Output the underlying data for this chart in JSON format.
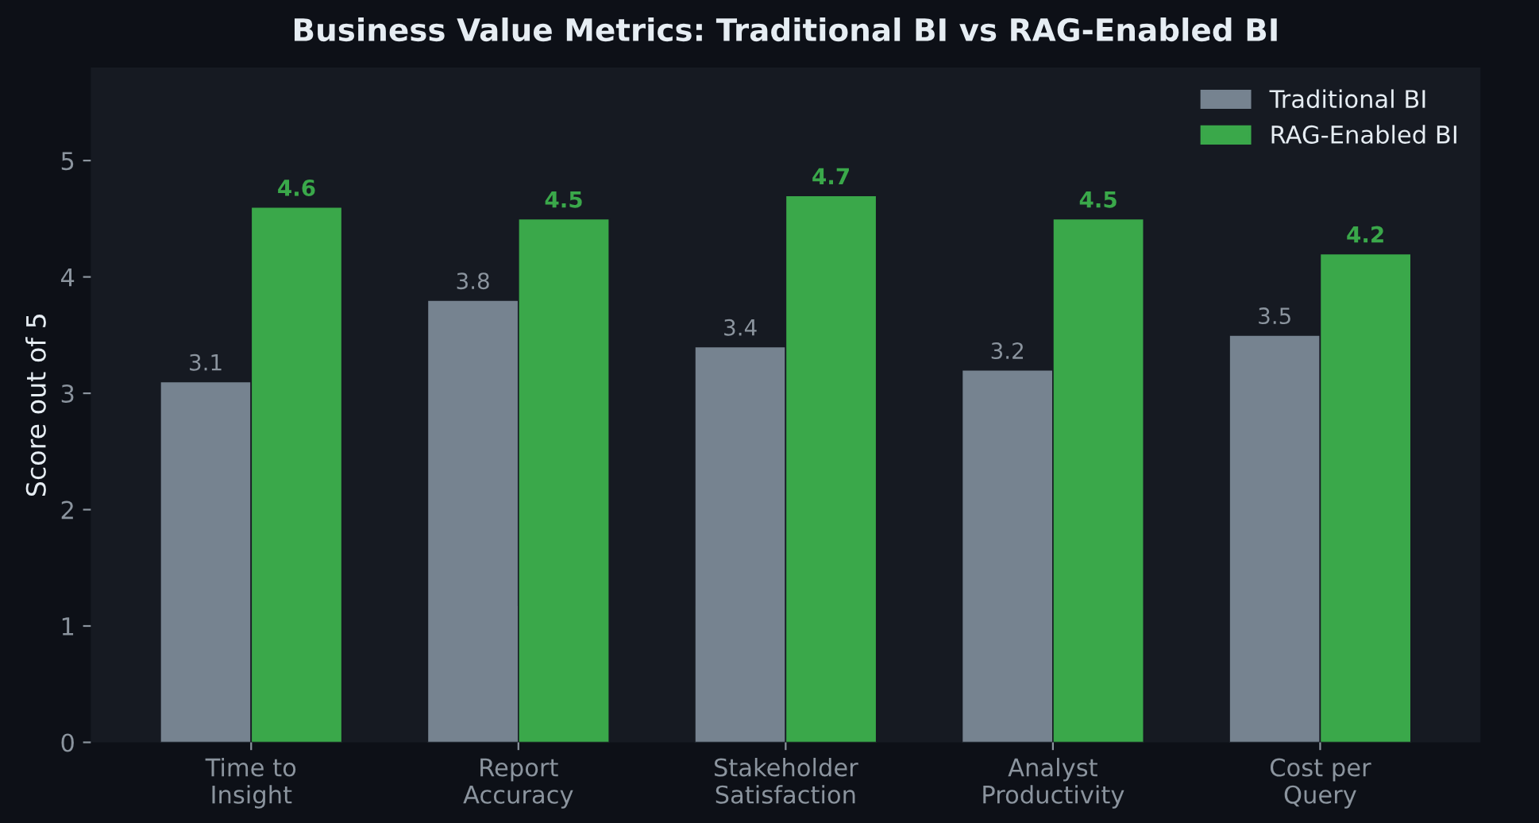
{
  "chart_data": {
    "type": "bar",
    "title": "Business Value Metrics: Traditional BI vs RAG-Enabled BI",
    "ylabel": "Score out of 5",
    "categories": [
      "Time to\nInsight",
      "Report\nAccuracy",
      "Stakeholder\nSatisfaction",
      "Analyst\nProductivity",
      "Cost per\nQuery"
    ],
    "series": [
      {
        "name": "Traditional BI",
        "color": "#768390",
        "values": [
          3.1,
          3.8,
          3.4,
          3.2,
          3.5
        ]
      },
      {
        "name": "RAG-Enabled BI",
        "color": "#3aa84a",
        "values": [
          4.6,
          4.5,
          4.7,
          4.5,
          4.2
        ]
      }
    ],
    "ylim": [
      0,
      5.8
    ],
    "yticks": [
      0,
      1,
      2,
      3,
      4,
      5
    ],
    "grid": false,
    "legend": "top right",
    "data_labels": true
  }
}
